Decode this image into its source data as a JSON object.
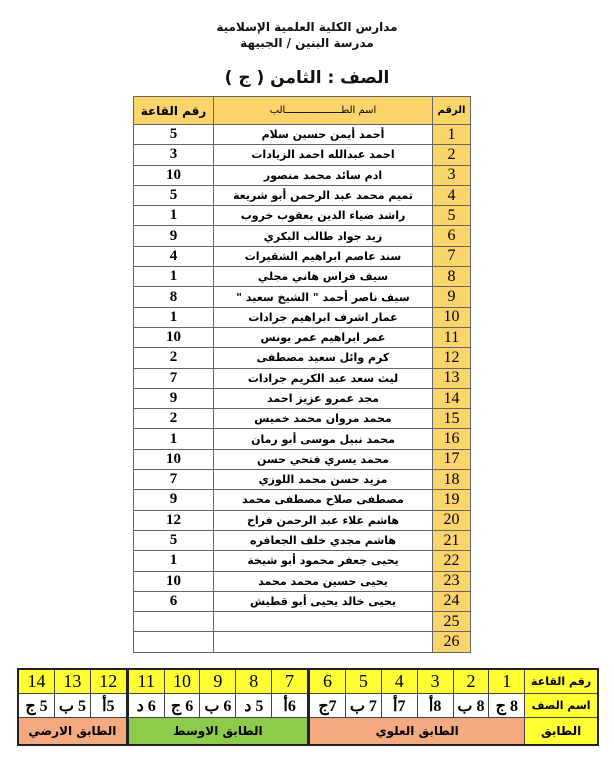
{
  "header": {
    "line1": "مدارس الكلية العلمية الإسلامية",
    "line2": "مدرسة البنين / الجبيهة",
    "class_title": "الصف : الثامن ( ج )"
  },
  "table": {
    "columns": {
      "number": "الرقم",
      "name": "اسم الطـــــــــــــــــــالب",
      "room": "رقم القاعة"
    },
    "rows": [
      {
        "n": "1",
        "name": "أحمد أيمن حسين سلام",
        "room": "5"
      },
      {
        "n": "2",
        "name": "احمد عبدالله احمد الزيادات",
        "room": "3"
      },
      {
        "n": "3",
        "name": "ادم سائد محمد منصور",
        "room": "10"
      },
      {
        "n": "4",
        "name": "تميم محمد عبد الرحمن أبو شريعة",
        "room": "5"
      },
      {
        "n": "5",
        "name": "راشد ضياء الدين يعقوب  خروب",
        "room": "1"
      },
      {
        "n": "6",
        "name": "زيد جواد طالب البكري",
        "room": "9"
      },
      {
        "n": "7",
        "name": "سند عاصم ابراهيم الشقيرات",
        "room": "4"
      },
      {
        "n": "8",
        "name": "سيف فراس هاني مجلي",
        "room": "1"
      },
      {
        "n": "9",
        "name": "سيف ناصر أحمد \" الشيخ سعيد \"",
        "room": "8"
      },
      {
        "n": "10",
        "name": "عمار اشرف ابراهيم جرادات",
        "room": "1"
      },
      {
        "n": "11",
        "name": "عمر ابراهيم عمر يونس",
        "room": "10"
      },
      {
        "n": "12",
        "name": "كرم وائل  سعيد مصطفى",
        "room": "2"
      },
      {
        "n": "13",
        "name": "ليث سعد عبد الكريم  جرادات",
        "room": "7"
      },
      {
        "n": "14",
        "name": "مجد عمرو عزيز احمد",
        "room": "9"
      },
      {
        "n": "15",
        "name": "محمد مروان محمد  خميس",
        "room": "2"
      },
      {
        "n": "16",
        "name": "محمد نبيل موسى أبو رمان",
        "room": "1"
      },
      {
        "n": "17",
        "name": "محمد يسري فتحي حسن",
        "room": "10"
      },
      {
        "n": "18",
        "name": "مزيد حسن محمد  اللوزي",
        "room": "7"
      },
      {
        "n": "19",
        "name": "مصطفى صلاح  مصطفى محمد",
        "room": "9"
      },
      {
        "n": "20",
        "name": "هاشم علاء  عبد الرحمن  فراح",
        "room": "12"
      },
      {
        "n": "21",
        "name": "هاشم مجدي خلف الجعافره",
        "room": "5"
      },
      {
        "n": "22",
        "name": "يحيى جعفر محمود أبو شيخة",
        "room": "1"
      },
      {
        "n": "23",
        "name": "يحيى حسين محمد محمد",
        "room": "10"
      },
      {
        "n": "24",
        "name": "يحيى خالد يحيى أبو قطيش",
        "room": "6"
      },
      {
        "n": "25",
        "name": "",
        "room": ""
      },
      {
        "n": "26",
        "name": "",
        "room": ""
      }
    ]
  },
  "rooms": {
    "labels": {
      "room": "رقم القاعة",
      "class": "اسم الصف",
      "floor": "الطابق"
    },
    "numbers": [
      "1",
      "2",
      "3",
      "4",
      "5",
      "6",
      "7",
      "8",
      "9",
      "10",
      "11",
      "12",
      "13",
      "14"
    ],
    "classes": [
      "8 ج",
      "8 ب",
      "8أ",
      "7أ",
      "7 ب",
      "7ج",
      "6أ",
      "5 د",
      "6 ب",
      "6 ج",
      "6 د",
      "5أ",
      "5 ب",
      "5 ج"
    ],
    "floors": [
      {
        "name": "الطابق العلوي",
        "color": "#f4a980"
      },
      {
        "name": "الطابق الاوسط",
        "color": "#8ccc4a"
      },
      {
        "name": "الطابق الارضي",
        "color": "#f4a980"
      }
    ]
  }
}
